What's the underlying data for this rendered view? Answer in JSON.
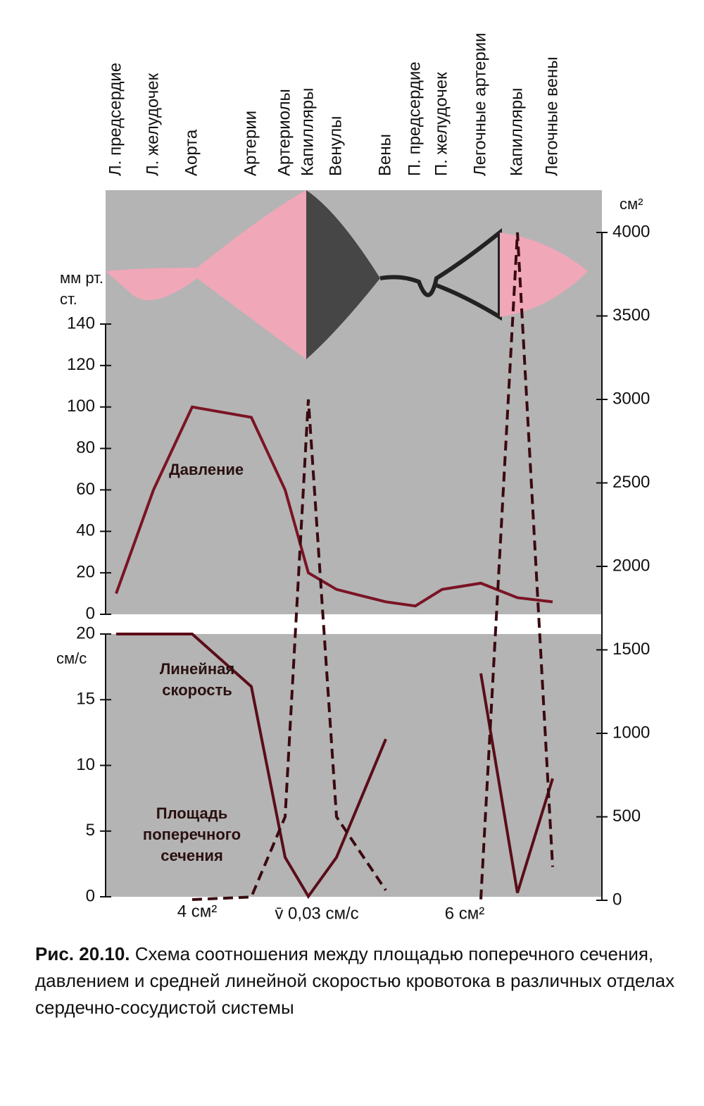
{
  "chart_data": [
    {
      "type": "line",
      "categories": [
        "Л. предсердие",
        "Л. желудочек",
        "Аорта",
        "Артерии",
        "Артериолы",
        "Капилляры",
        "Венулы",
        "Вены",
        "П. предсердие",
        "П. желудочек",
        "Легочные артерии",
        "Капилляры",
        "Легочные вены"
      ],
      "y_label": "мм рт. ст.",
      "ylim": [
        0,
        140
      ],
      "yticks": [
        0,
        20,
        40,
        60,
        80,
        100,
        120,
        140
      ],
      "series": [
        {
          "name": "Давление",
          "color": "#7a1424",
          "values": [
            10,
            60,
            100,
            95,
            60,
            20,
            12,
            6,
            4,
            12,
            15,
            8,
            6
          ]
        }
      ]
    },
    {
      "type": "line",
      "y_label": "см/с",
      "ylim": [
        0,
        20
      ],
      "yticks": [
        0,
        5,
        10,
        15,
        20
      ],
      "y2_label": "см²",
      "y2lim": [
        0,
        4000
      ],
      "y2ticks": [
        0,
        500,
        1000,
        1500,
        2000,
        2500,
        3000,
        3500,
        4000
      ],
      "series": [
        {
          "name": "Линейная скорость",
          "color": "#5a0d18",
          "values": [
            20,
            20,
            20,
            16,
            3,
            0.03,
            3,
            12,
            null,
            null,
            17,
            0.3,
            9
          ]
        },
        {
          "name": "Площадь поперечного сечения",
          "color": "#3a0a10",
          "axis": "y2",
          "values": [
            null,
            null,
            4,
            20,
            500,
            3000,
            500,
            60,
            null,
            null,
            6,
            4000,
            200
          ]
        }
      ],
      "annotations": [
        "4 см²",
        "v̄ 0,03 см/с",
        "6 см²"
      ]
    }
  ],
  "caption": {
    "label": "Рис. 20.10.",
    "text": "Схема соотношения между площадью поперечного сечения, давлением и средней линейной скоростью кровотока в различных отделах сердечно-сосудистой системы"
  }
}
